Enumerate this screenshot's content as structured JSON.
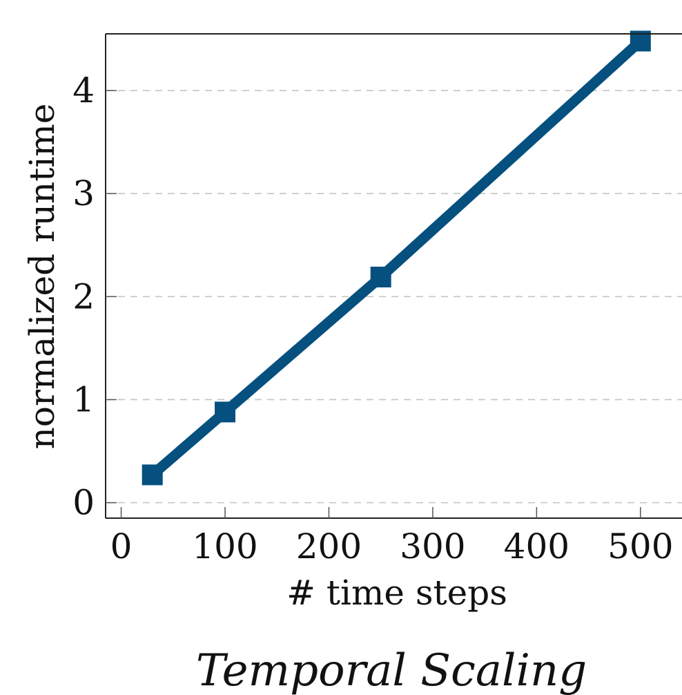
{
  "chart_data": {
    "type": "line",
    "caption": "Temporal Scaling",
    "xlabel": "# time steps",
    "ylabel": "normalized runtime",
    "xlim": [
      -15,
      540
    ],
    "ylim": [
      -0.15,
      4.55
    ],
    "xticks": [
      0,
      100,
      200,
      300,
      400,
      500
    ],
    "yticks": [
      0,
      1,
      2,
      3,
      4
    ],
    "grid": {
      "y": "dashed",
      "x": "none"
    },
    "series": [
      {
        "x": [
          30,
          100,
          250,
          500
        ],
        "y": [
          0.27,
          0.88,
          2.19,
          4.48
        ],
        "color": "#05507F",
        "marker": "square"
      }
    ]
  }
}
